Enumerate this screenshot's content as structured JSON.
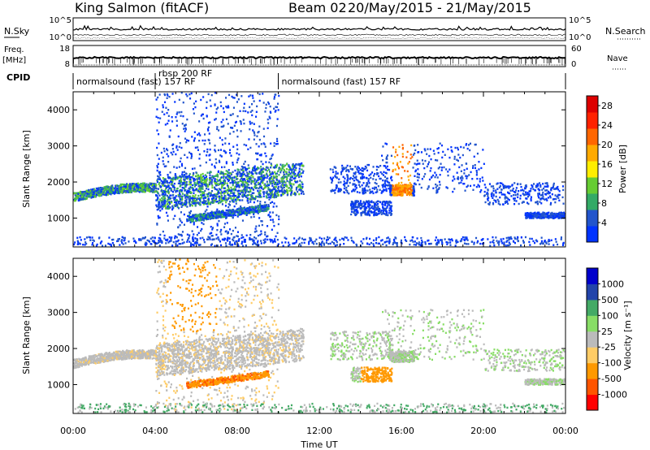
{
  "header": {
    "station": "King Salmon (fitACF)",
    "beam": "Beam 02",
    "dates": "20/May/2015 - 21/May/2015"
  },
  "ancillary": {
    "nsky_label": "N.Sky",
    "nsearch_label": "N.Search",
    "noise_ticks": [
      "10^5",
      "10^0"
    ],
    "freq_label": "Freq.",
    "freq_unit": "[MHz]",
    "freq_ticks_left": [
      "18",
      "8"
    ],
    "nave_ticks_right": [
      "60",
      "0"
    ],
    "nave_label": "Nave",
    "cpid_label": "CPID",
    "cpid_modes": [
      {
        "name": "normalsound (fast) 157 RF",
        "start_hour": 0,
        "end_hour": 4
      },
      {
        "name": "rbsp 200 RF",
        "start_hour": 4,
        "end_hour": 10
      },
      {
        "name": "normalsound (fast) 157 RF",
        "start_hour": 10,
        "end_hour": 24
      }
    ]
  },
  "colors": {
    "power": [
      "#0033ff",
      "#2255cc",
      "#33aa66",
      "#66cc33",
      "#ffee00",
      "#ffaa00",
      "#ff6600",
      "#ff2200",
      "#dd0000"
    ],
    "velocity": [
      "#ff0000",
      "#ff5500",
      "#ff9900",
      "#ffcc66",
      "#bbbbbb",
      "#88dd66",
      "#44aa66",
      "#2244aa",
      "#0000cc"
    ]
  },
  "chart_data": [
    {
      "type": "heatmap",
      "name": "power",
      "xlabel": "Time UT",
      "ylabel": "Slant Range [km]",
      "xlim": [
        0,
        24
      ],
      "ylim": [
        200,
        4500
      ],
      "xticks": [
        "00:00",
        "04:00",
        "08:00",
        "12:00",
        "16:00",
        "20:00",
        "00:00"
      ],
      "yticks": [
        1000,
        2000,
        3000,
        4000
      ],
      "colorbar": {
        "label": "Power [dB]",
        "ticks": [
          4,
          8,
          12,
          16,
          20,
          24,
          28
        ],
        "range": [
          0,
          30
        ]
      }
    },
    {
      "type": "heatmap",
      "name": "velocity",
      "xlabel": "Time UT",
      "ylabel": "Slant Range [km]",
      "xlim": [
        0,
        24
      ],
      "ylim": [
        200,
        4500
      ],
      "xticks": [
        "00:00",
        "04:00",
        "08:00",
        "12:00",
        "16:00",
        "20:00",
        "00:00"
      ],
      "yticks": [
        1000,
        2000,
        3000,
        4000
      ],
      "colorbar": {
        "label": "Velocity [m s⁻¹]",
        "ticks": [
          "1000",
          "500",
          "100",
          "25",
          "-25",
          "-100",
          "-500",
          "-1000"
        ]
      }
    }
  ]
}
